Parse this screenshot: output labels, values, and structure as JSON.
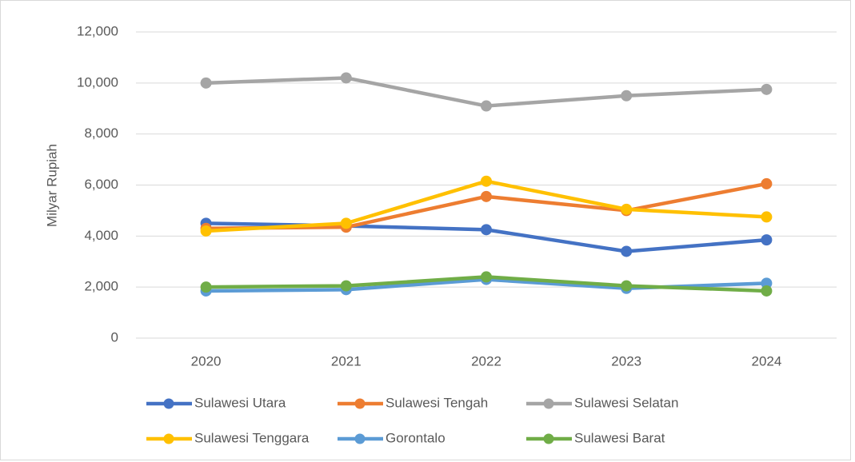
{
  "chart_data": {
    "type": "line",
    "y_label": "Milyar Rupiah",
    "categories": [
      "2020",
      "2021",
      "2022",
      "2023",
      "2024"
    ],
    "series": [
      {
        "name": "Sulawesi Utara",
        "color": "#4472c4",
        "values": [
          4500,
          4400,
          4250,
          3400,
          3850
        ]
      },
      {
        "name": "Sulawesi Tengah",
        "color": "#ed7d31",
        "values": [
          4300,
          4350,
          5550,
          5000,
          6050
        ]
      },
      {
        "name": "Sulawesi Selatan",
        "color": "#a5a5a5",
        "values": [
          10000,
          10200,
          9100,
          9500,
          9750
        ]
      },
      {
        "name": "Sulawesi Tenggara",
        "color": "#ffc000",
        "values": [
          4200,
          4500,
          6150,
          5050,
          4750
        ]
      },
      {
        "name": "Gorontalo",
        "color": "#5b9bd5",
        "values": [
          1850,
          1900,
          2300,
          1950,
          2150
        ]
      },
      {
        "name": "Sulawesi Barat",
        "color": "#70ad47",
        "values": [
          2000,
          2050,
          2400,
          2050,
          1850
        ]
      }
    ],
    "ylim": [
      0,
      12000
    ],
    "yticks": [
      0,
      {
        "value": 2000,
        "label": "2,000"
      },
      {
        "value": 4000,
        "label": "4,000"
      },
      {
        "value": 6000,
        "label": "6,000"
      },
      {
        "value": 8000,
        "label": "8,000"
      },
      {
        "value": 10000,
        "label": "10,000"
      },
      {
        "value": 12000,
        "label": "12,000"
      }
    ],
    "grid": true,
    "legend": "bottom"
  }
}
